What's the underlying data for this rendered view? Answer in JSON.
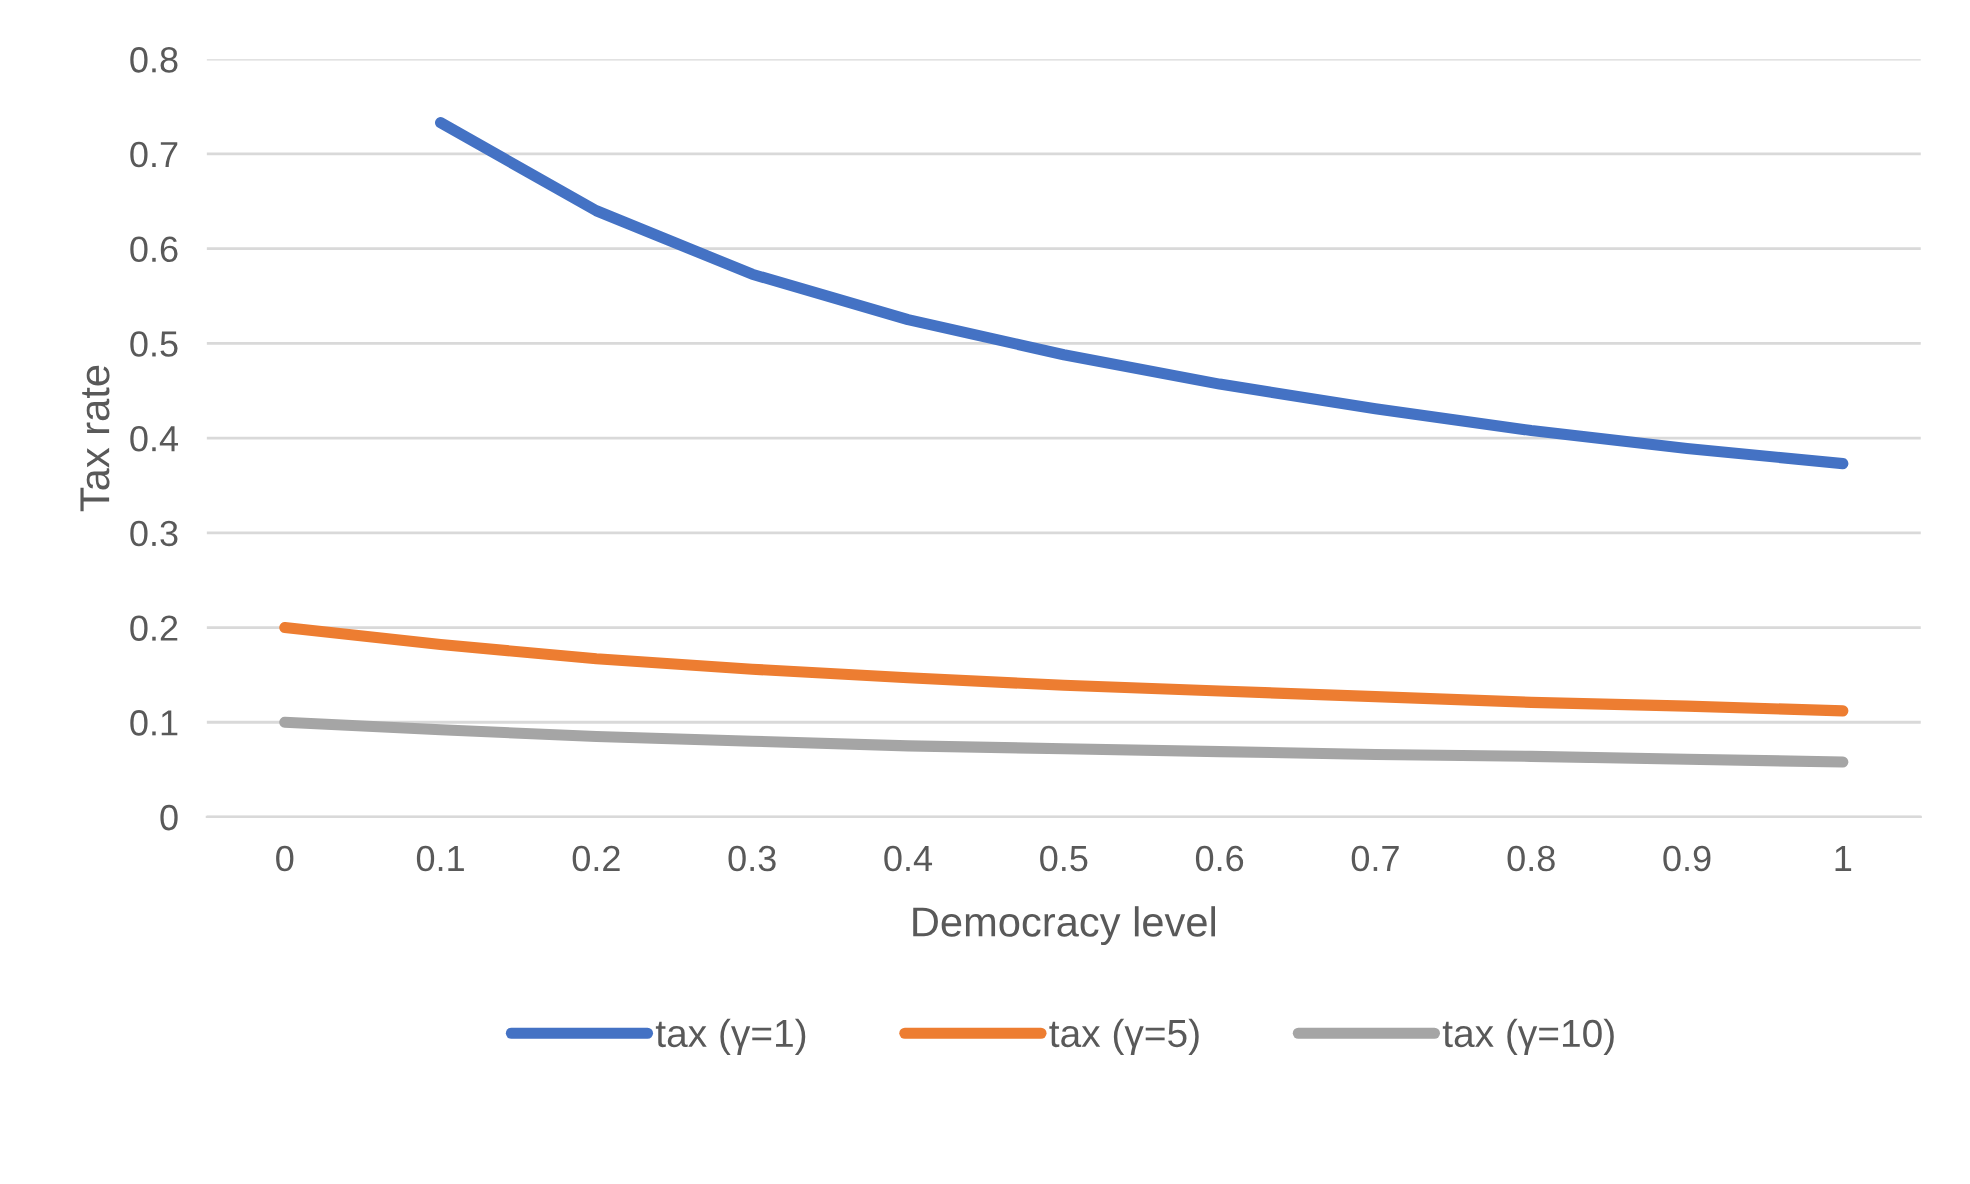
{
  "chart_data": {
    "type": "line",
    "xlabel": "Democracy level",
    "ylabel": "Tax rate",
    "categories": [
      "0",
      "0.1",
      "0.2",
      "0.3",
      "0.4",
      "0.5",
      "0.6",
      "0.7",
      "0.8",
      "0.9",
      "1"
    ],
    "series": [
      {
        "name": "tax (γ=1)",
        "color": "#4472c4",
        "values": [
          null,
          0.733,
          0.64,
          0.573,
          0.525,
          0.488,
          0.457,
          0.431,
          0.408,
          0.389,
          0.373
        ]
      },
      {
        "name": "tax (γ=5)",
        "color": "#ed7d31",
        "values": [
          0.2,
          0.182,
          0.167,
          0.156,
          0.147,
          0.139,
          0.133,
          0.127,
          0.121,
          0.117,
          0.112
        ]
      },
      {
        "name": "tax (γ=10)",
        "color": "#a5a5a5",
        "values": [
          0.1,
          0.092,
          0.085,
          0.08,
          0.075,
          0.072,
          0.069,
          0.066,
          0.064,
          0.061,
          0.058
        ]
      }
    ],
    "ylim": [
      0,
      0.8
    ],
    "yticks": [
      0,
      0.1,
      0.2,
      0.3,
      0.4,
      0.5,
      0.6,
      0.7,
      0.8
    ],
    "grid": "y",
    "legend": "bottom",
    "marker": "none",
    "line_style": "solid"
  }
}
